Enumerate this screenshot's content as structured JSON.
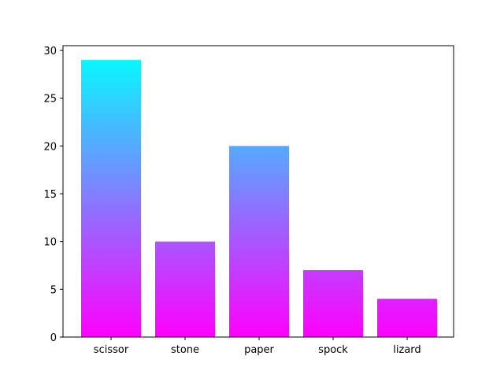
{
  "chart_data": {
    "type": "bar",
    "categories": [
      "scissor",
      "stone",
      "paper",
      "spock",
      "lizard"
    ],
    "values": [
      29,
      10,
      20,
      7,
      4
    ],
    "title": "",
    "xlabel": "",
    "ylabel": "",
    "ylim": [
      0,
      30
    ],
    "yticks": [
      0,
      5,
      10,
      15,
      20,
      25,
      30
    ],
    "grid": false,
    "legend": "none",
    "fill": {
      "style": "vertical-gradient",
      "top_color": "#00ffff",
      "bottom_color": "#ff00ff",
      "note": "colors map value 30 (cyan) down to 0 (magenta)"
    },
    "axis_color": "#000000",
    "background": "#ffffff"
  }
}
